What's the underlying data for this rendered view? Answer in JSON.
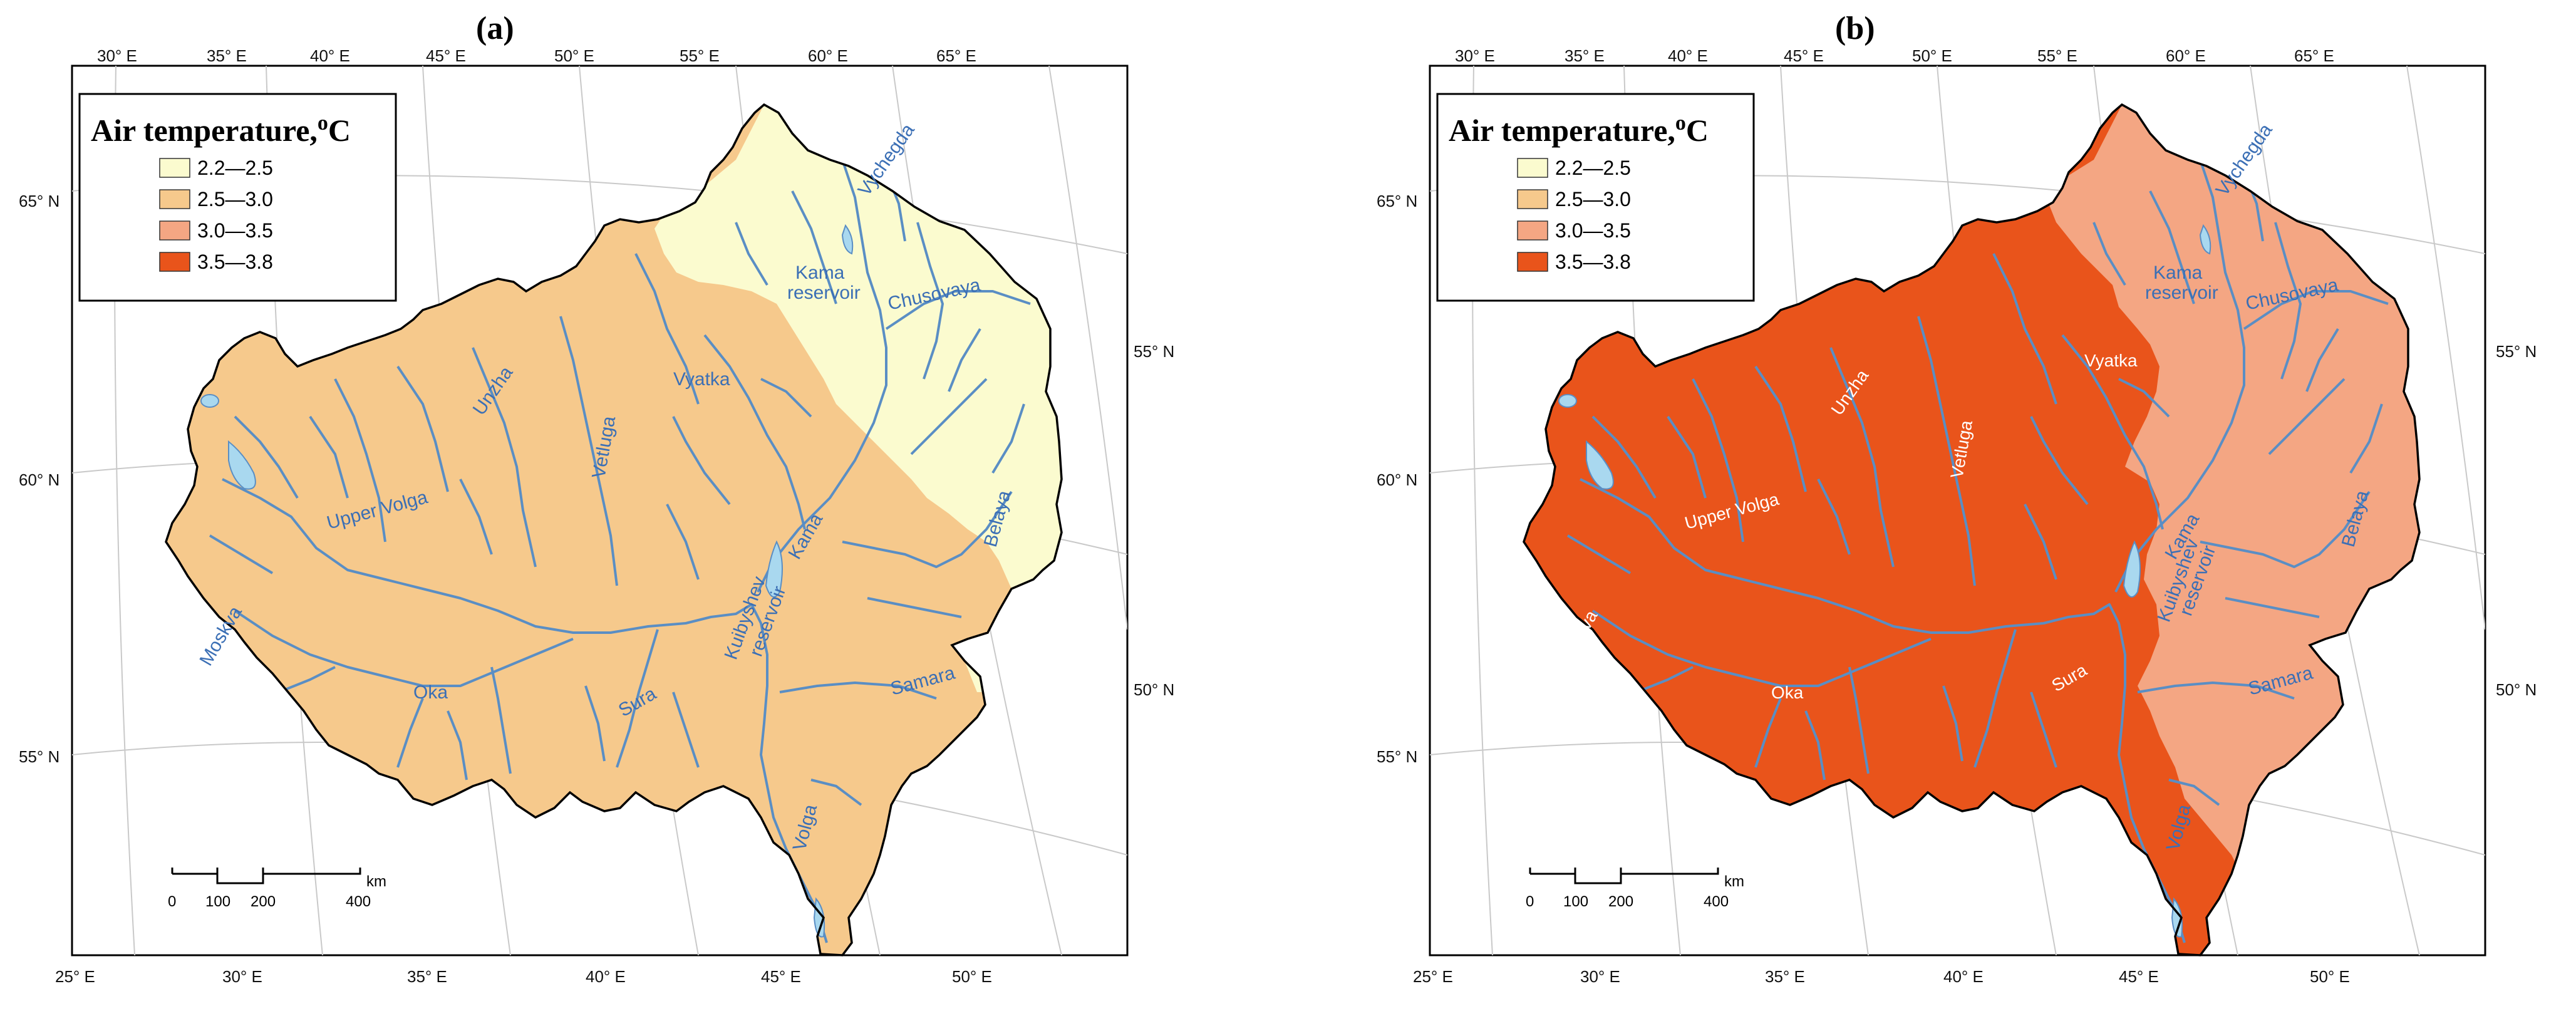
{
  "panels": [
    {
      "letter": "(a)",
      "legend_title": "Air temperature,",
      "legend_unit_sup": "o",
      "legend_unit": "C",
      "zone_west_class": 1,
      "zone_east_class": 0
    },
    {
      "letter": "(b)",
      "legend_title": "Air temperature,",
      "legend_unit_sup": "o",
      "legend_unit": "C",
      "zone_west_class": 3,
      "zone_east_class": 2
    }
  ],
  "legend": {
    "classes": [
      {
        "label": "2.2—2.5",
        "color": "#fbfbcf"
      },
      {
        "label": "2.5—3.0",
        "color": "#f6c98c"
      },
      {
        "label": "3.0—3.5",
        "color": "#f4a683"
      },
      {
        "label": "3.5—3.8",
        "color": "#e9541b"
      }
    ]
  },
  "ticks": {
    "top": [
      "30° E",
      "35° E",
      "40° E",
      "45° E",
      "50° E",
      "55° E",
      "60° E",
      "65° E"
    ],
    "bottom": [
      "25° E",
      "30° E",
      "35° E",
      "40° E",
      "45° E",
      "50° E"
    ],
    "left": [
      "65° N",
      "60° N",
      "55° N"
    ],
    "right": [
      "55° N",
      "50° N"
    ]
  },
  "river_labels": {
    "vychegda": "Vychegda",
    "kama_reservoir_1": "Kama",
    "kama_reservoir_2": "reservoir",
    "chusovaya": "Chusovaya",
    "unzha": "Unzha",
    "vetluga": "Vetluga",
    "vyatka": "Vyatka",
    "upper_volga": "Upper Volga",
    "kama": "Kama",
    "belaya": "Belaya",
    "kuibyshev_1": "Kuibyshev",
    "kuibyshev_2": "reservoir",
    "samara": "Samara",
    "sura": "Sura",
    "oka": "Oka",
    "moskva": "Moskva",
    "volga": "Volga"
  },
  "scale_bar": {
    "unit": "km",
    "labels": [
      "0",
      "100",
      "200",
      "400"
    ]
  },
  "colors": {
    "river": "#5a8ec4",
    "lake": "#a9d8ef",
    "graticule": "#c9c9c9",
    "border": "#000000"
  }
}
